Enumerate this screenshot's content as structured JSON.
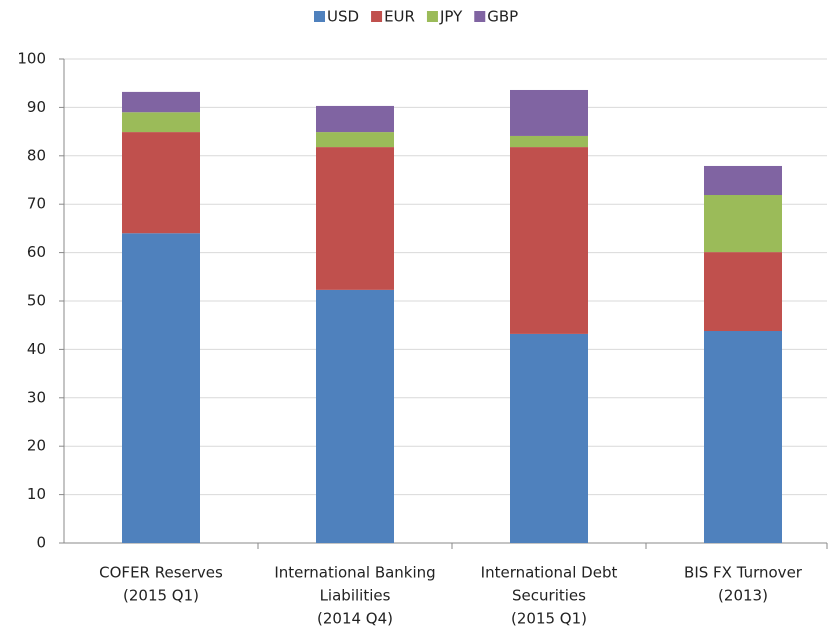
{
  "chart_data": {
    "type": "stacked_bar",
    "categories": [
      [
        "COFER Reserves",
        "(2015 Q1)"
      ],
      [
        "International Banking",
        "Liabilities",
        "(2014 Q4)"
      ],
      [
        "International Debt",
        "Securities",
        "(2015 Q1)"
      ],
      [
        "BIS FX Turnover",
        "(2013)"
      ]
    ],
    "series": [
      {
        "name": "USD",
        "color": "#4f81bd",
        "values": [
          64.0,
          52.3,
          43.2,
          43.8
        ]
      },
      {
        "name": "EUR",
        "color": "#c0504d",
        "values": [
          20.9,
          29.5,
          38.6,
          16.3
        ]
      },
      {
        "name": "JPY",
        "color": "#9bbb59",
        "values": [
          4.1,
          3.1,
          2.3,
          11.8
        ]
      },
      {
        "name": "GBP",
        "color": "#8064a2",
        "values": [
          4.2,
          5.4,
          9.5,
          6.0
        ]
      }
    ],
    "ylim": [
      0,
      100
    ],
    "yticks": [
      0,
      10,
      20,
      30,
      40,
      50,
      60,
      70,
      80,
      90,
      100
    ],
    "grid": true,
    "legend": "top"
  }
}
